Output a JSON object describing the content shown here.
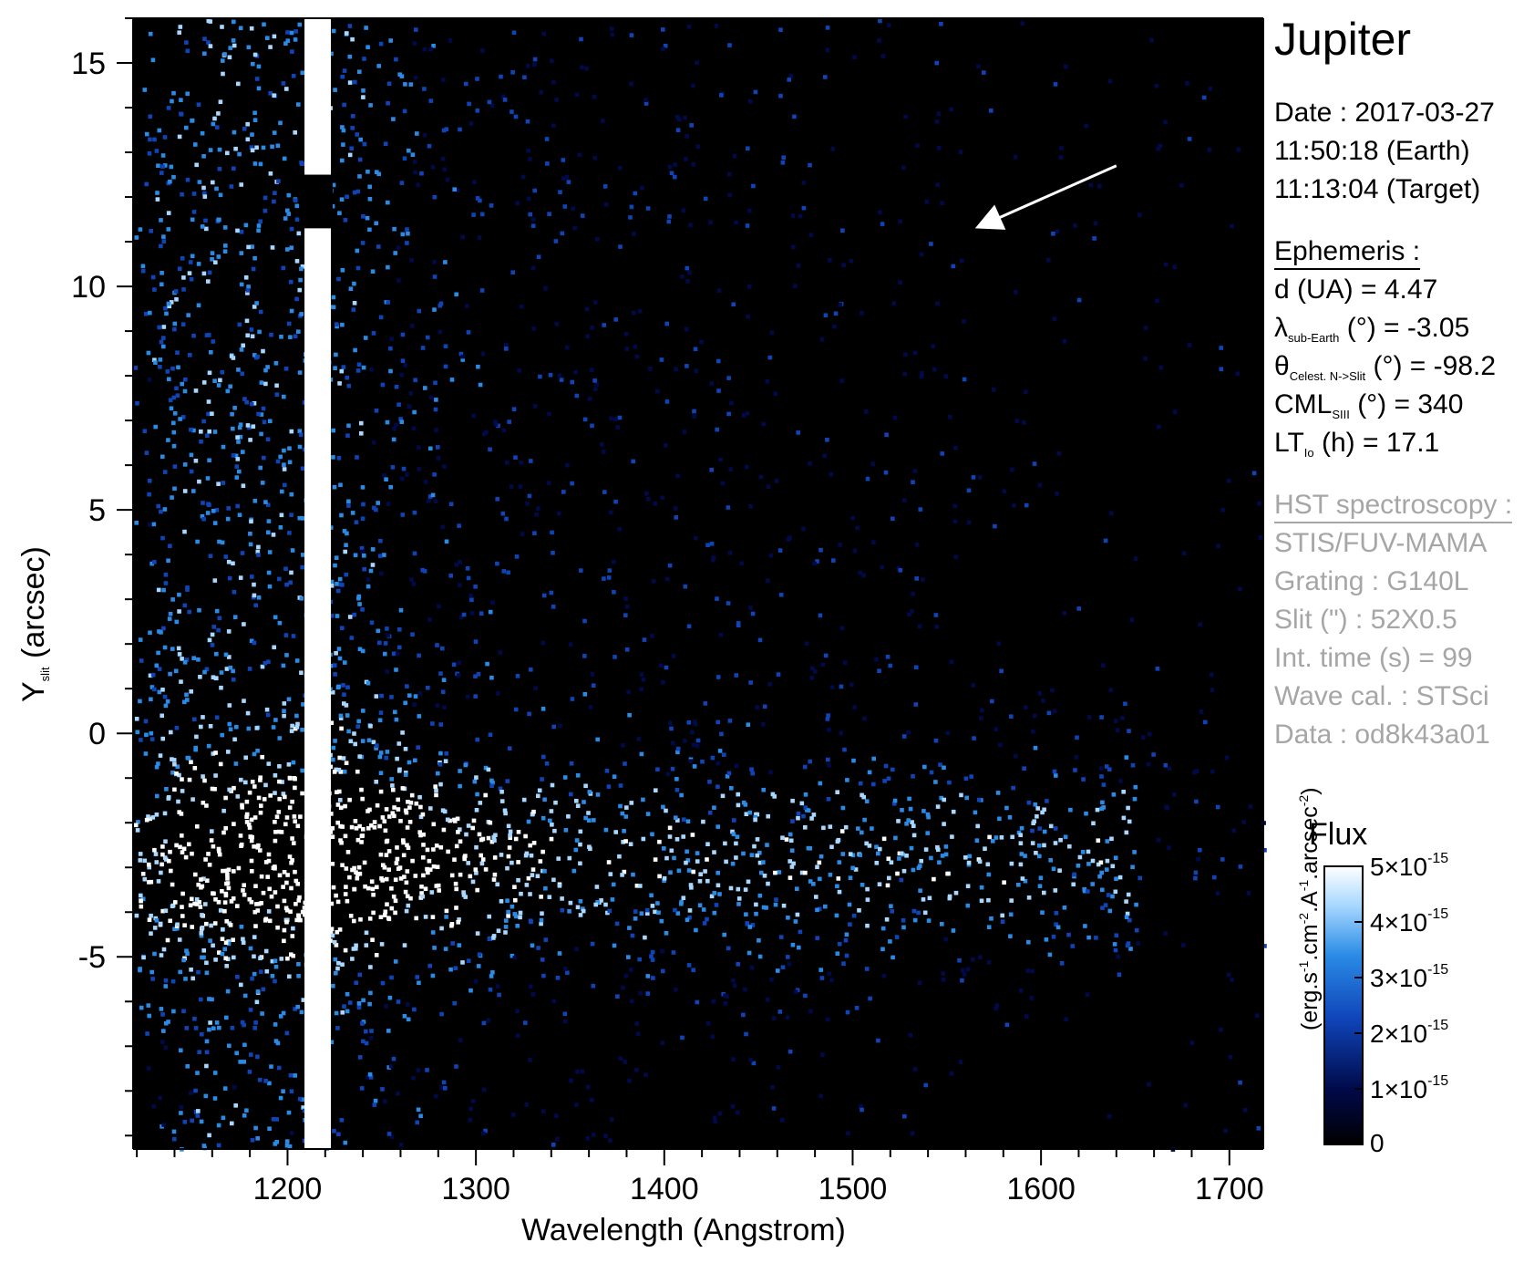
{
  "chart_data": {
    "type": "heatmap",
    "title": "Jupiter",
    "xlabel": "Wavelength (Angstrom)",
    "ylabel": {
      "main": "Y",
      "subscript": "slit",
      "unit": "(arcsec)"
    },
    "xlim": [
      1118,
      1718
    ],
    "ylim": [
      -9.3,
      16.0
    ],
    "x_ticks": [
      1200,
      1300,
      1400,
      1500,
      1600,
      1700
    ],
    "x_tick_labels": [
      "1200",
      "1300",
      "1400",
      "1500",
      "1600",
      "1700"
    ],
    "y_ticks": [
      15,
      10,
      5,
      0,
      -5
    ],
    "y_tick_labels": [
      "15",
      "10",
      "5",
      "0",
      "-5"
    ],
    "colormap": [
      "#000000",
      "#000a4a",
      "#0f44b8",
      "#2a8be6",
      "#a8d8ff",
      "#ffffff"
    ],
    "colorbar": {
      "label": "Flux",
      "unit": {
        "a": "(erg.s",
        "b": ".cm",
        "c": ".A",
        "d": ".arcsec",
        "e": ")",
        "exp_a": "-1",
        "exp_b": "-2",
        "exp_c": "-1",
        "exp_d": "-2"
      },
      "range": [
        0,
        5e-15
      ],
      "ticks": [
        {
          "value": 0,
          "mantissa": "0",
          "exponent": ""
        },
        {
          "value": 1e-15,
          "mantissa": "1×10",
          "exponent": "-15"
        },
        {
          "value": 2e-15,
          "mantissa": "2×10",
          "exponent": "-15"
        },
        {
          "value": 3e-15,
          "mantissa": "3×10",
          "exponent": "-15"
        },
        {
          "value": 4e-15,
          "mantissa": "4×10",
          "exponent": "-15"
        },
        {
          "value": 5e-15,
          "mantissa": "5×10",
          "exponent": "-15"
        }
      ]
    },
    "features": {
      "lyman_alpha_line_angstrom": 1216,
      "auroral_band_y_arcsec": [
        -4.5,
        -1.0
      ],
      "slit_gap_y_arcsec": [
        11.3,
        12.5
      ]
    },
    "annotation": {
      "type": "arrow",
      "from": [
        1640,
        12.7
      ],
      "to": [
        1565,
        11.3
      ]
    }
  },
  "info": {
    "date": {
      "label": "Date : ",
      "value": "2017-03-27"
    },
    "earth_time": "11:50:18 (Earth)",
    "target_time": "11:13:04 (Target)",
    "ephemeris_heading": "Ephemeris :",
    "ephemeris": [
      {
        "sym": "d (UA)",
        "sub": "",
        "rest": "",
        "value": "= 4.47"
      },
      {
        "sym": "λ",
        "sub": "sub-Earth",
        "rest": " (°)",
        "value": "= -3.05"
      },
      {
        "sym": "θ",
        "sub": "Celest. N->Slit",
        "rest": " (°)",
        "value": "= -98.2"
      },
      {
        "sym": "CML",
        "sub": "SIII",
        "rest": " (°)",
        "value": "= 340"
      },
      {
        "sym": "LT",
        "sub": "Io",
        "rest": " (h)",
        "value": "= 17.1"
      }
    ],
    "hst_heading": "HST spectroscopy :",
    "hst": [
      "STIS/FUV-MAMA",
      "Grating : G140L",
      "Slit (\") : 52X0.5",
      "Int. time (s) = 99",
      "Wave cal. : STSci",
      "Data : od8k43a01"
    ]
  }
}
